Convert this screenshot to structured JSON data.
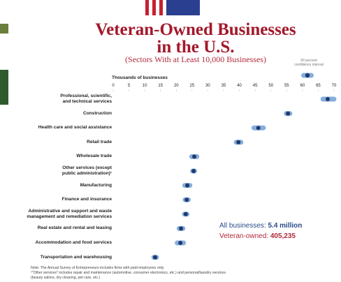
{
  "chart_data": {
    "type": "dot",
    "title": "Veteran-Owned Businesses\nin the U.S.",
    "subtitle": "(Sectors With at Least 10,000 Businesses)",
    "xlabel": "Thousands of businesses",
    "legend_label": "90 percent\nconfidence interval",
    "xlim": [
      0,
      70
    ],
    "xticks": [
      0,
      5,
      10,
      15,
      20,
      25,
      30,
      35,
      40,
      45,
      50,
      55,
      60,
      65,
      70
    ],
    "categories": [
      "Professional, scientific,\nand technical services",
      "Construction",
      "Health care and social assistance",
      "Retail trade",
      "Wholesale trade",
      "Other services (except\npublic administration)¹",
      "Manufacturing",
      "Finance and insurance",
      "Administrative and support and waste\nmanagement and remediation services",
      "Real estate and rental and leasing",
      "Accommodation and food services",
      "Transportation and warehousing"
    ],
    "series": [
      {
        "color": "#1f3a6b",
        "ci_color": "#86aedd",
        "values": [
          68,
          55.4,
          46,
          39.7,
          25.7,
          25.5,
          23.5,
          23.3,
          23,
          21.5,
          21.3,
          13.3
        ],
        "ci_low": [
          66.5,
          54.9,
          44.6,
          39,
          24.9,
          25.2,
          22.7,
          22.8,
          22.6,
          20.9,
          20.3,
          12.9
        ],
        "ci_high": [
          70,
          56,
          47.6,
          40.5,
          26.5,
          25.8,
          24.3,
          23.8,
          23.4,
          22.1,
          22.3,
          13.7
        ]
      }
    ],
    "totals": [
      {
        "label": "All businesses:",
        "value": "5.4 million"
      },
      {
        "label": "Veteran-owned:",
        "value": "405,235"
      }
    ],
    "notes": [
      "Note: The Annual Survey of Entrepreneurs includes firms with paid employees only.",
      "¹\"Other services\" includes repair and maintenance (automotive, consumer electronics, etc.) and personal/laundry services",
      "(beauty salons, dry cleaning, pet care, etc.)"
    ]
  }
}
